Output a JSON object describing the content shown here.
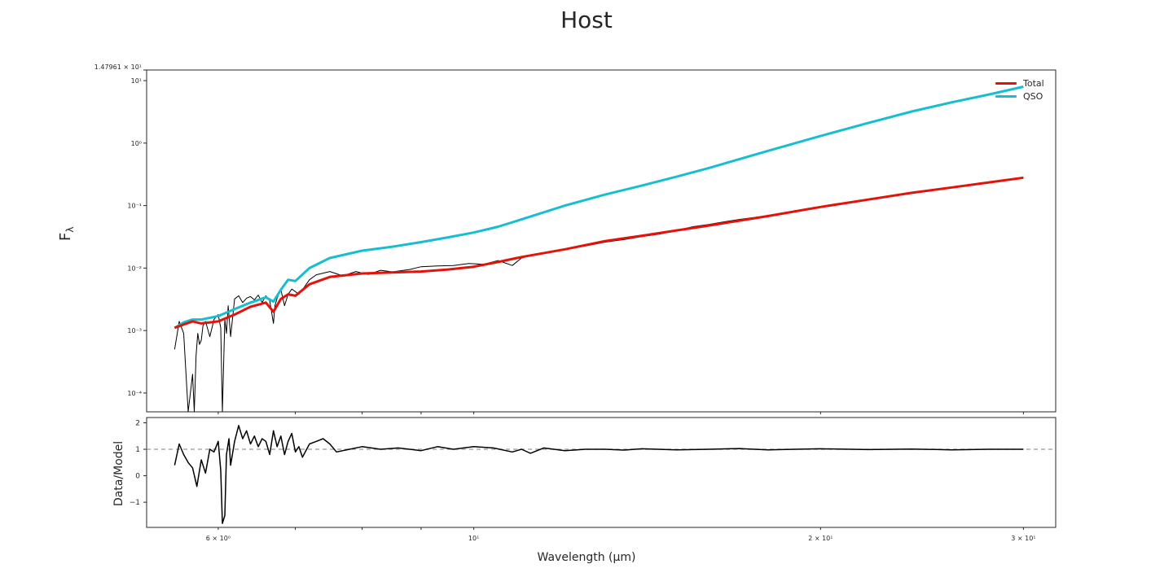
{
  "chart_data": [
    {
      "panel": "main",
      "type": "line",
      "title": "Host",
      "ylabel": "F",
      "ylabel_sub": "λ",
      "xlabel": "",
      "xscale": "log",
      "yscale": "log",
      "xlim": [
        5.2,
        32
      ],
      "ylim": [
        5e-05,
        14.7961
      ],
      "ytick_labels": [
        {
          "value": 14.7961,
          "label": "1.47961 × 10¹"
        },
        {
          "value": 10,
          "label": "10¹"
        },
        {
          "value": 1,
          "label": "10⁰"
        },
        {
          "value": 0.1,
          "label": "10⁻¹"
        },
        {
          "value": 0.01,
          "label": "10⁻²"
        },
        {
          "value": 0.001,
          "label": "10⁻³"
        },
        {
          "value": 0.0001,
          "label": "10⁻⁴"
        }
      ],
      "legend_position": "top-right",
      "series": [
        {
          "name": "Total",
          "color": "#e3120b",
          "x": [
            5.5,
            5.6,
            5.7,
            5.8,
            5.9,
            6.0,
            6.2,
            6.4,
            6.6,
            6.7,
            6.8,
            6.9,
            7.0,
            7.2,
            7.5,
            8.0,
            8.5,
            9.0,
            9.5,
            10.0,
            10.5,
            11.0,
            12.0,
            13.0,
            14.0,
            15.0,
            16.0,
            18.0,
            20.0,
            22.0,
            24.0,
            26.0,
            28.0,
            30.0
          ],
          "y": [
            0.0011,
            0.00125,
            0.0014,
            0.0013,
            0.00135,
            0.0014,
            0.0018,
            0.0024,
            0.0028,
            0.002,
            0.0032,
            0.0038,
            0.0036,
            0.0055,
            0.0072,
            0.0082,
            0.0085,
            0.0088,
            0.0095,
            0.0105,
            0.0125,
            0.015,
            0.02,
            0.027,
            0.033,
            0.04,
            0.048,
            0.068,
            0.095,
            0.125,
            0.16,
            0.195,
            0.235,
            0.28
          ]
        },
        {
          "name": "QSO",
          "color": "#17becf",
          "x": [
            5.5,
            5.6,
            5.7,
            5.8,
            5.9,
            6.0,
            6.2,
            6.4,
            6.6,
            6.7,
            6.8,
            6.9,
            7.0,
            7.2,
            7.5,
            8.0,
            8.5,
            9.0,
            9.5,
            10.0,
            10.5,
            11.0,
            12.0,
            13.0,
            14.0,
            15.0,
            16.0,
            18.0,
            20.0,
            22.0,
            24.0,
            26.0,
            28.0,
            30.0
          ],
          "y": [
            0.0011,
            0.00135,
            0.0015,
            0.0015,
            0.0016,
            0.0017,
            0.0022,
            0.0028,
            0.0034,
            0.0029,
            0.0045,
            0.0065,
            0.0062,
            0.01,
            0.0145,
            0.019,
            0.022,
            0.026,
            0.031,
            0.037,
            0.046,
            0.06,
            0.1,
            0.15,
            0.21,
            0.29,
            0.4,
            0.75,
            1.3,
            2.1,
            3.2,
            4.5,
            6.0,
            8.0
          ]
        },
        {
          "name": "",
          "color": "#000000",
          "x": [
            5.5,
            5.55,
            5.6,
            5.65,
            5.7,
            5.72,
            5.74,
            5.76,
            5.78,
            5.8,
            5.82,
            5.85,
            5.88,
            5.9,
            5.95,
            6.0,
            6.03,
            6.05,
            6.08,
            6.1,
            6.12,
            6.15,
            6.2,
            6.25,
            6.3,
            6.35,
            6.4,
            6.45,
            6.5,
            6.55,
            6.6,
            6.65,
            6.7,
            6.72,
            6.75,
            6.8,
            6.85,
            6.9,
            6.95,
            7.0,
            7.05,
            7.1,
            7.2,
            7.3,
            7.4,
            7.5,
            7.7,
            7.9,
            8.1,
            8.3,
            8.5,
            8.8,
            9.0,
            9.3,
            9.6,
            9.9,
            10.2,
            10.5,
            10.8,
            11.0,
            11.3,
            11.6,
            12.0,
            12.5,
            13.0,
            13.5,
            14.0,
            14.5,
            15.0,
            15.5,
            16.0,
            16.5,
            17.0,
            18.0,
            19.0,
            20.0,
            21.0,
            22.0,
            23.0,
            24.0,
            25.0,
            26.0,
            27.0,
            28.0,
            29.0,
            30.0
          ],
          "y": [
            0.0005,
            0.0014,
            0.0009,
            5e-05,
            0.0002,
            5e-05,
            0.0004,
            0.0009,
            0.0006,
            0.0007,
            0.0012,
            0.0014,
            0.001,
            0.0008,
            0.0015,
            0.0018,
            0.0011,
            5e-05,
            0.0015,
            0.0009,
            0.0025,
            0.0008,
            0.0032,
            0.0036,
            0.0028,
            0.0033,
            0.0035,
            0.0031,
            0.0037,
            0.0028,
            0.0036,
            0.003,
            0.0013,
            0.0025,
            0.0033,
            0.0045,
            0.0025,
            0.0038,
            0.0046,
            0.0042,
            0.0038,
            0.0045,
            0.0065,
            0.0078,
            0.0083,
            0.0088,
            0.0075,
            0.0088,
            0.0079,
            0.0092,
            0.0087,
            0.0095,
            0.0105,
            0.0108,
            0.011,
            0.0118,
            0.0115,
            0.0132,
            0.011,
            0.0145,
            0.0165,
            0.0175,
            0.0198,
            0.0225,
            0.026,
            0.0285,
            0.032,
            0.035,
            0.04,
            0.046,
            0.05,
            0.055,
            0.06,
            0.069,
            0.08,
            0.094,
            0.11,
            0.125,
            0.145,
            0.16,
            0.18,
            0.195,
            0.215,
            0.235,
            0.255,
            0.28
          ]
        }
      ]
    },
    {
      "panel": "residual",
      "type": "line",
      "title": "",
      "xlabel": "Wavelength (μm)",
      "ylabel": "Data/Model",
      "xscale": "log",
      "xlim": [
        5.2,
        32
      ],
      "ylim": [
        -1.95,
        2.2
      ],
      "yticks": [
        -1,
        0,
        1,
        2
      ],
      "xtick_labels": [
        {
          "value": 6,
          "label": "6 × 10⁰"
        },
        {
          "value": 10,
          "label": "10¹"
        },
        {
          "value": 20,
          "label": "2 × 10¹"
        },
        {
          "value": 30,
          "label": "3 × 10¹"
        }
      ],
      "reference_line": {
        "y": 1,
        "style": "dashed",
        "color": "#999999"
      },
      "series": [
        {
          "name": "",
          "color": "#000000",
          "x": [
            5.5,
            5.55,
            5.6,
            5.65,
            5.7,
            5.75,
            5.8,
            5.85,
            5.9,
            5.95,
            6.0,
            6.03,
            6.05,
            6.08,
            6.1,
            6.13,
            6.15,
            6.2,
            6.25,
            6.3,
            6.35,
            6.4,
            6.45,
            6.5,
            6.55,
            6.6,
            6.65,
            6.7,
            6.75,
            6.8,
            6.85,
            6.9,
            6.95,
            7.0,
            7.05,
            7.1,
            7.2,
            7.3,
            7.4,
            7.5,
            7.6,
            7.8,
            8.0,
            8.3,
            8.6,
            9.0,
            9.3,
            9.6,
            10.0,
            10.4,
            10.8,
            11.0,
            11.2,
            11.5,
            12.0,
            12.5,
            13.0,
            13.5,
            14.0,
            15.0,
            16.0,
            17.0,
            18.0,
            19.0,
            20.0,
            22.0,
            24.0,
            26.0,
            28.0,
            30.0
          ],
          "y": [
            0.4,
            1.2,
            0.8,
            0.5,
            0.3,
            -0.4,
            0.6,
            0.1,
            1.0,
            0.9,
            1.3,
            0.2,
            -1.8,
            -1.5,
            0.8,
            1.4,
            0.4,
            1.3,
            1.9,
            1.4,
            1.7,
            1.2,
            1.5,
            1.1,
            1.4,
            1.3,
            0.8,
            1.7,
            1.1,
            1.5,
            0.8,
            1.3,
            1.6,
            0.9,
            1.1,
            0.7,
            1.2,
            1.3,
            1.4,
            1.2,
            0.9,
            1.0,
            1.1,
            1.0,
            1.05,
            0.95,
            1.1,
            1.0,
            1.1,
            1.05,
            0.9,
            1.0,
            0.85,
            1.05,
            0.95,
            1.0,
            1.0,
            0.97,
            1.02,
            0.98,
            1.0,
            1.03,
            0.98,
            1.0,
            1.02,
            0.99,
            1.01,
            0.98,
            1.0,
            1.0
          ]
        }
      ]
    }
  ]
}
